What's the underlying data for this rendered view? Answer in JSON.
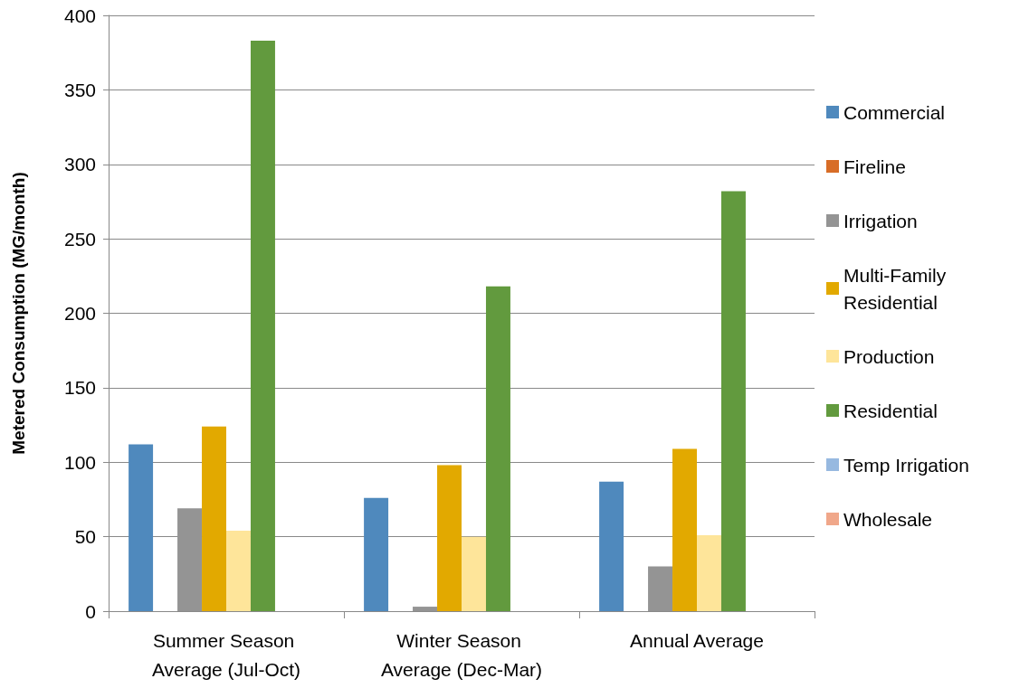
{
  "chart_data": {
    "type": "bar",
    "ylabel": "Metered Consumption (MG/month)",
    "categories": [
      "Summer Season Average (Jul-Oct)",
      "Winter Season Average (Dec-Mar)",
      "Annual Average"
    ],
    "series": [
      {
        "name": "Commercial",
        "color": "#4f89bd",
        "values": [
          112,
          76,
          87
        ]
      },
      {
        "name": "Fireline",
        "color": "#d86d27",
        "values": [
          0,
          0,
          0
        ]
      },
      {
        "name": "Irrigation",
        "color": "#949494",
        "values": [
          69,
          3,
          30
        ]
      },
      {
        "name": "Multi-Family Residential",
        "color": "#e2a900",
        "values": [
          124,
          98,
          109
        ]
      },
      {
        "name": "Production",
        "color": "#fee59a",
        "values": [
          54,
          50,
          51
        ]
      },
      {
        "name": "Residential",
        "color": "#629a3e",
        "values": [
          383,
          218,
          282
        ]
      },
      {
        "name": "Temp Irrigation",
        "color": "#97b9e0",
        "values": [
          0,
          0,
          0
        ]
      },
      {
        "name": "Wholesale",
        "color": "#f0a78a",
        "values": [
          0,
          0,
          0
        ]
      }
    ],
    "ylim": [
      0,
      400
    ],
    "yticks": [
      0,
      50,
      100,
      150,
      200,
      250,
      300,
      350,
      400
    ],
    "grid": "y",
    "legend": "right"
  }
}
